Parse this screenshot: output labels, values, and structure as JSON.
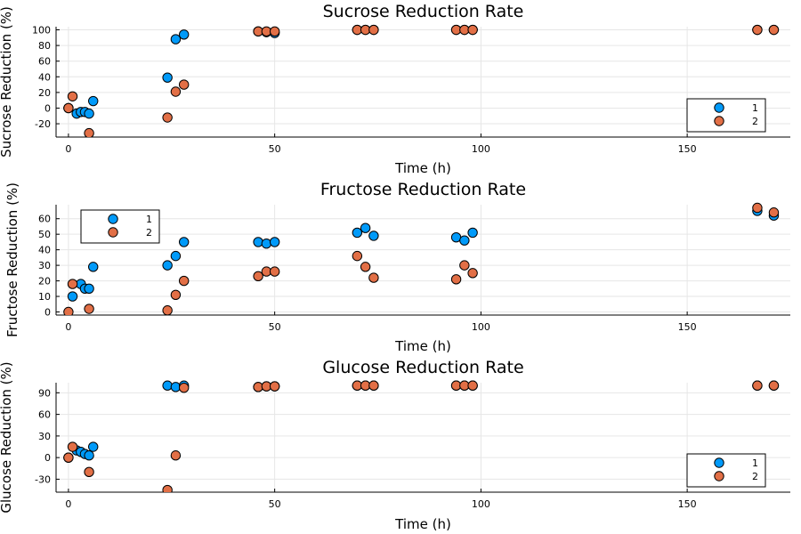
{
  "colors": {
    "series1": "#009af9",
    "series2": "#e26f46"
  },
  "chart_data": [
    {
      "type": "scatter",
      "title": "Sucrose Reduction Rate",
      "xlabel": "Time (h)",
      "ylabel": "Sucrose Reduction (%)",
      "xlim": [
        -3,
        175
      ],
      "ylim": [
        -37,
        104
      ],
      "xticks": [
        0,
        50,
        100,
        150
      ],
      "yticks": [
        -20,
        0,
        20,
        40,
        60,
        80,
        100
      ],
      "legend_position": "bottom-right",
      "series": [
        {
          "name": "1",
          "x": [
            0,
            2,
            3,
            4,
            5,
            6,
            24,
            26,
            28,
            46,
            48,
            50,
            70,
            72,
            74,
            94,
            96,
            98,
            167,
            171
          ],
          "y": [
            0,
            -7,
            -5,
            -5,
            -7,
            9,
            39,
            88,
            94,
            98,
            97,
            96,
            100,
            100,
            100,
            100,
            100,
            100,
            100,
            100
          ]
        },
        {
          "name": "2",
          "x": [
            0,
            1,
            5,
            24,
            26,
            28,
            46,
            48,
            50,
            70,
            72,
            74,
            94,
            96,
            98,
            167,
            171
          ],
          "y": [
            0,
            15,
            -32,
            -12,
            21,
            30,
            98,
            98,
            98,
            100,
            100,
            100,
            100,
            100,
            100,
            100,
            100
          ]
        }
      ]
    },
    {
      "type": "scatter",
      "title": "Fructose Reduction Rate",
      "xlabel": "Time (h)",
      "ylabel": "Fructose Reduction (%)",
      "xlim": [
        -3,
        175
      ],
      "ylim": [
        -2,
        69
      ],
      "xticks": [
        0,
        50,
        100,
        150
      ],
      "yticks": [
        0,
        10,
        20,
        30,
        40,
        50,
        60
      ],
      "legend_position": "top-left",
      "series": [
        {
          "name": "1",
          "x": [
            1,
            3,
            4,
            5,
            6,
            24,
            26,
            28,
            46,
            48,
            50,
            70,
            72,
            74,
            94,
            96,
            98,
            167,
            171
          ],
          "y": [
            10,
            18,
            15,
            15,
            29,
            30,
            36,
            45,
            45,
            44,
            45,
            51,
            54,
            49,
            48,
            46,
            51,
            65,
            62
          ]
        },
        {
          "name": "2",
          "x": [
            0,
            1,
            5,
            24,
            26,
            28,
            46,
            48,
            50,
            70,
            72,
            74,
            94,
            96,
            98,
            167,
            171
          ],
          "y": [
            0,
            18,
            2,
            1,
            11,
            20,
            23,
            26,
            26,
            36,
            29,
            22,
            21,
            30,
            25,
            67,
            64
          ]
        }
      ]
    },
    {
      "type": "scatter",
      "title": "Glucose Reduction Rate",
      "xlabel": "Time (h)",
      "ylabel": "Glucose Reduction (%)",
      "xlim": [
        -3,
        175
      ],
      "ylim": [
        -48,
        104
      ],
      "xticks": [
        0,
        50,
        100,
        150
      ],
      "yticks": [
        -30,
        0,
        30,
        60,
        90
      ],
      "legend_position": "bottom-right",
      "series": [
        {
          "name": "1",
          "x": [
            0,
            2,
            3,
            4,
            5,
            6,
            24,
            26,
            28,
            46,
            48,
            50,
            70,
            72,
            74,
            94,
            96,
            98,
            167,
            171
          ],
          "y": [
            0,
            10,
            8,
            5,
            3,
            15,
            100,
            98,
            100,
            98,
            99,
            99,
            100,
            100,
            100,
            100,
            100,
            100,
            100,
            100
          ]
        },
        {
          "name": "2",
          "x": [
            0,
            1,
            5,
            24,
            26,
            28,
            46,
            48,
            50,
            70,
            72,
            74,
            94,
            96,
            98,
            167,
            171
          ],
          "y": [
            0,
            15,
            -20,
            -45,
            3,
            97,
            98,
            99,
            99,
            100,
            100,
            100,
            100,
            100,
            100,
            100,
            100
          ]
        }
      ]
    }
  ]
}
